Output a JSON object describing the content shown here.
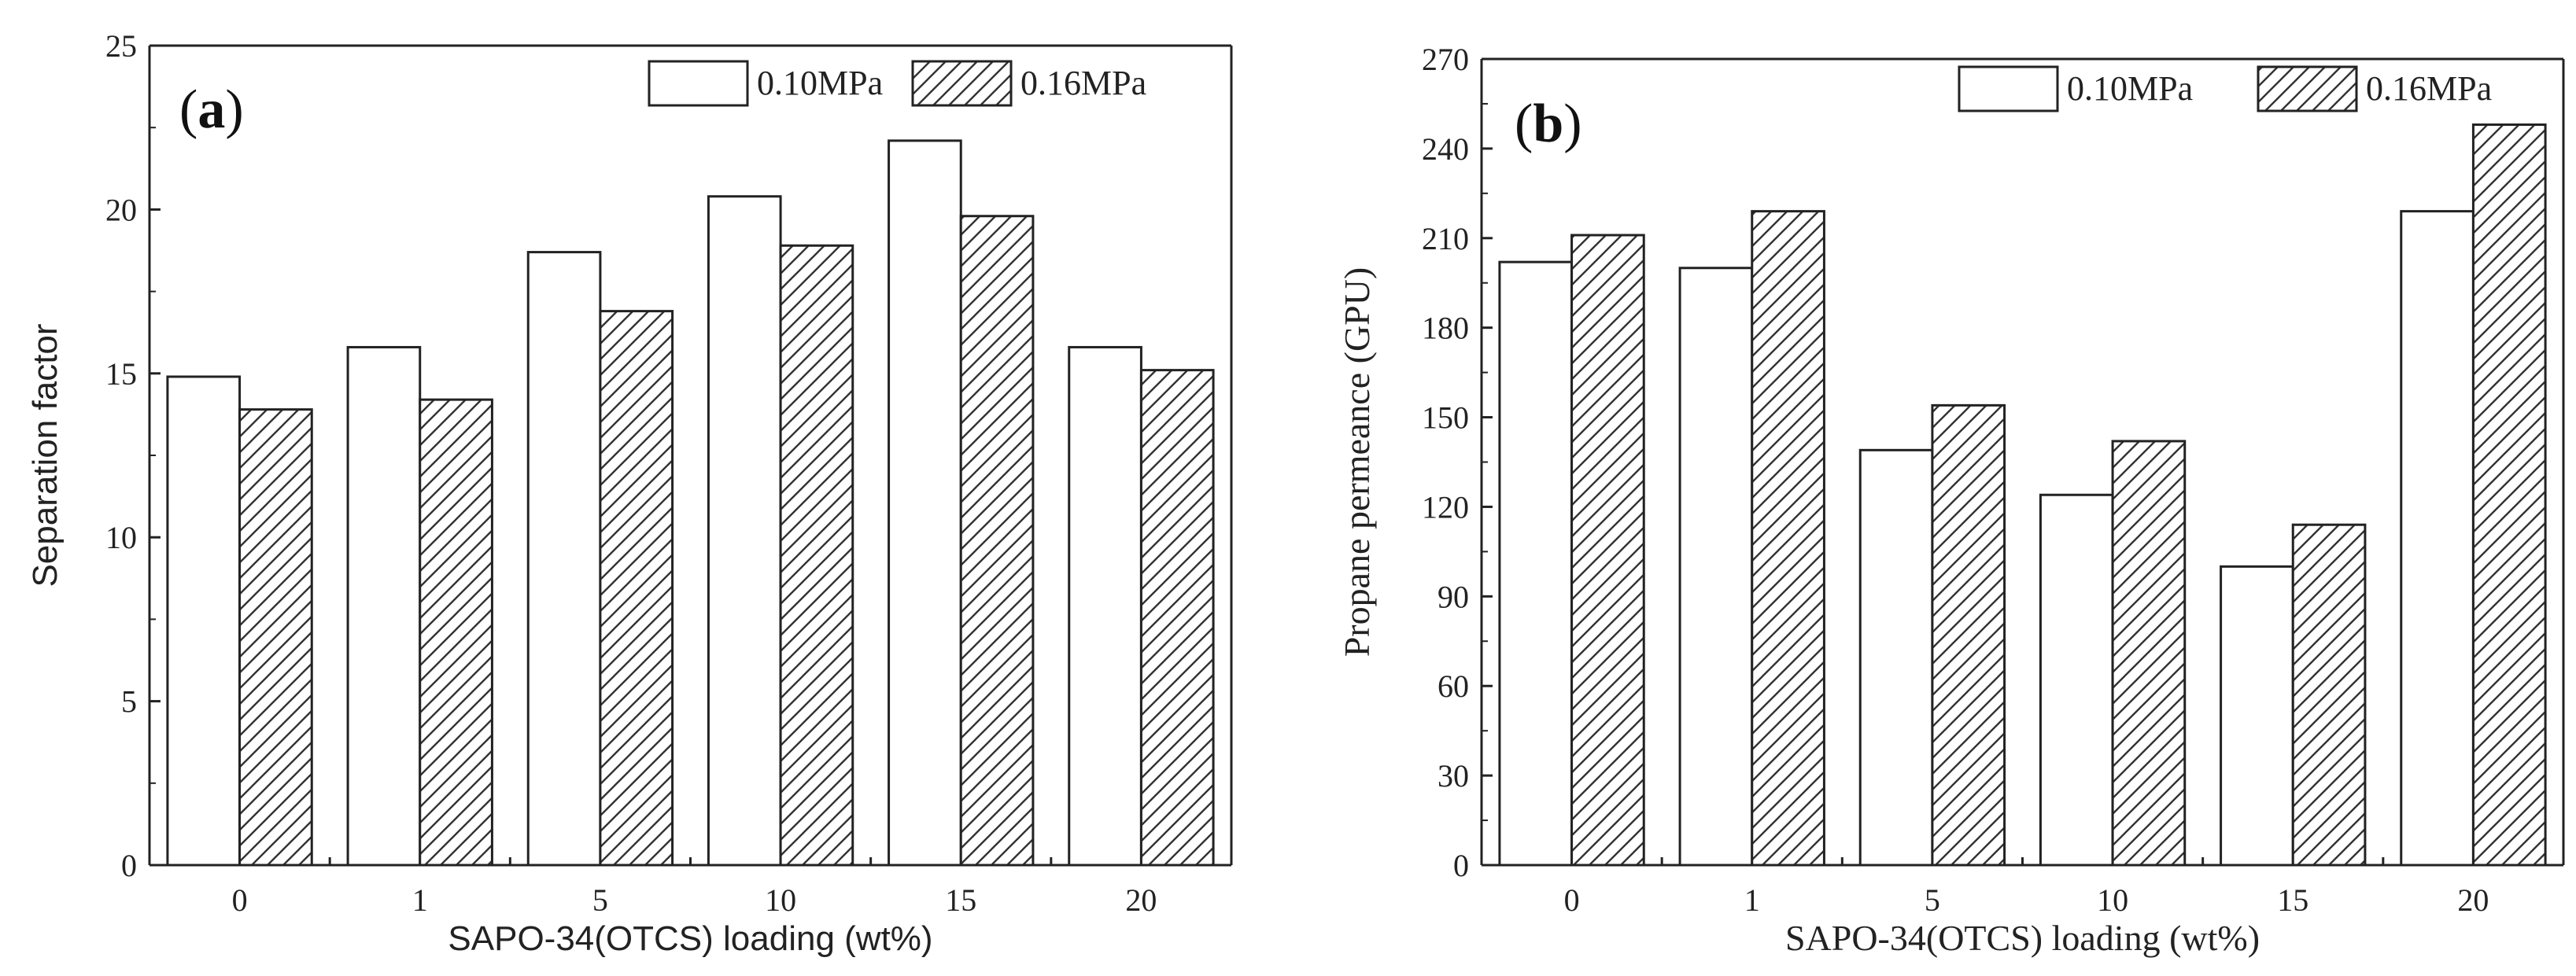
{
  "chart_data": [
    {
      "type": "bar",
      "panel": "(a)",
      "panel_parts": [
        "(",
        "a",
        ")"
      ],
      "categories": [
        "0",
        "1",
        "5",
        "10",
        "15",
        "20"
      ],
      "series": [
        {
          "name": "0.10MPa",
          "values": [
            14.9,
            15.8,
            18.7,
            20.4,
            22.1,
            15.8
          ],
          "pattern": "open"
        },
        {
          "name": "0.16MPa",
          "values": [
            13.9,
            14.2,
            16.9,
            18.9,
            19.8,
            15.1
          ],
          "pattern": "hatched"
        }
      ],
      "xlabel": "SAPO-34(OTCS) loading (wt%)",
      "ylabel": "Separation factor",
      "ylim": [
        0,
        25
      ],
      "yticks": [
        "0",
        "5",
        "10",
        "15",
        "20",
        "25"
      ],
      "grid": false,
      "legend_position": "top-right"
    },
    {
      "type": "bar",
      "panel": "(b)",
      "panel_parts": [
        "(",
        "b",
        ")"
      ],
      "categories": [
        "0",
        "1",
        "5",
        "10",
        "15",
        "20"
      ],
      "series": [
        {
          "name": "0.10MPa",
          "values": [
            202,
            200,
            139,
            124,
            100,
            219
          ],
          "pattern": "open"
        },
        {
          "name": "0.16MPa",
          "values": [
            211,
            219,
            154,
            142,
            114,
            248
          ],
          "pattern": "hatched"
        }
      ],
      "xlabel": "SAPO-34(OTCS) loading (wt%)",
      "ylabel": "Propane permeance (GPU)",
      "ylim": [
        0,
        270
      ],
      "yticks": [
        "0",
        "30",
        "60",
        "90",
        "120",
        "150",
        "180",
        "210",
        "240",
        "270"
      ],
      "grid": false,
      "legend_position": "top-right"
    }
  ],
  "colors": {
    "axis": "#222222",
    "bar_fill": "#ffffff",
    "bar_stroke": "#222222",
    "hatch": "#333333"
  }
}
